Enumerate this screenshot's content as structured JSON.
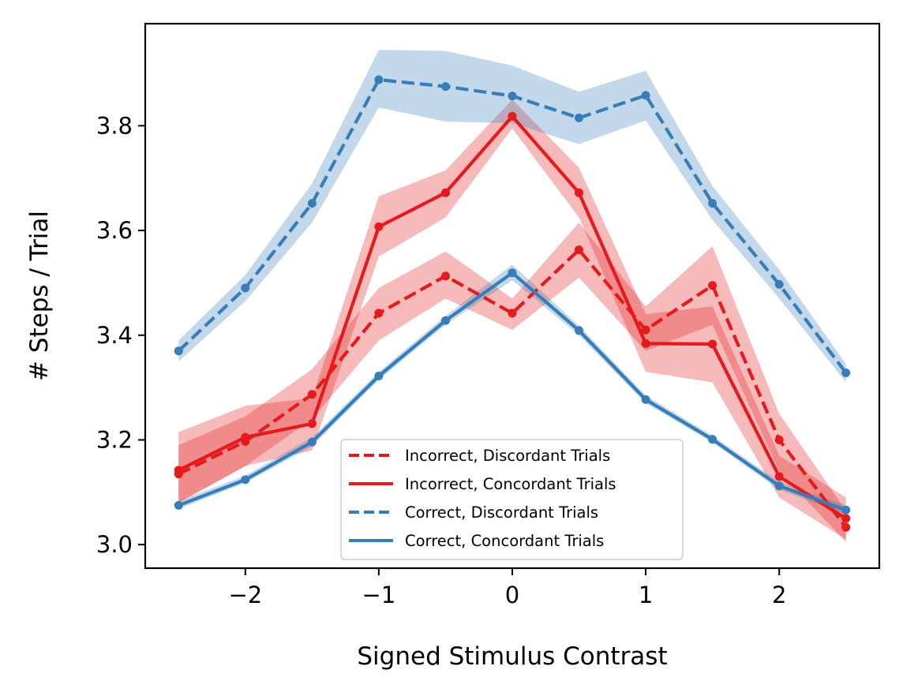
{
  "chart_data": {
    "type": "line",
    "title": "",
    "xlabel": "Signed Stimulus Contrast",
    "ylabel": "# Steps / Trial",
    "xlim": [
      -2.75,
      2.75
    ],
    "ylim": [
      2.955,
      3.995
    ],
    "xticks": [
      -2,
      -1,
      0,
      1,
      2
    ],
    "xtick_labels": [
      "−2",
      "−1",
      "0",
      "1",
      "2"
    ],
    "yticks": [
      3.0,
      3.2,
      3.4,
      3.6,
      3.8
    ],
    "ytick_labels": [
      "3.0",
      "3.2",
      "3.4",
      "3.6",
      "3.8"
    ],
    "grid": false,
    "legend_position": "lower-right",
    "x": [
      -2.5,
      -2.0,
      -1.5,
      -1.0,
      -0.5,
      0.0,
      0.5,
      1.0,
      1.5,
      2.0,
      2.5
    ],
    "series": [
      {
        "name": "Incorrect, Discordant Trials",
        "color": "#e41a1c",
        "line_style": "dashed",
        "values": [
          3.135,
          3.197,
          3.287,
          3.442,
          3.513,
          3.442,
          3.563,
          3.41,
          3.495,
          3.2,
          3.033
        ],
        "lower": [
          3.08,
          3.15,
          3.24,
          3.39,
          3.47,
          3.41,
          3.51,
          3.37,
          3.42,
          3.14,
          3.005
        ],
        "upper": [
          3.19,
          3.245,
          3.335,
          3.49,
          3.56,
          3.47,
          3.615,
          3.455,
          3.57,
          3.25,
          3.065
        ]
      },
      {
        "name": "Incorrect, Concordant Trials",
        "color": "#e41a1c",
        "line_style": "solid",
        "values": [
          3.142,
          3.205,
          3.231,
          3.607,
          3.672,
          3.818,
          3.672,
          3.384,
          3.383,
          3.13,
          3.05
        ],
        "lower": [
          3.08,
          3.15,
          3.18,
          3.55,
          3.625,
          3.795,
          3.625,
          3.33,
          3.31,
          3.09,
          3.01
        ],
        "upper": [
          3.215,
          3.265,
          3.28,
          3.665,
          3.715,
          3.85,
          3.72,
          3.44,
          3.455,
          3.17,
          3.09
        ]
      },
      {
        "name": "Correct, Discordant Trials",
        "color": "#377eb8",
        "line_style": "dashed",
        "values": [
          3.37,
          3.49,
          3.652,
          3.888,
          3.875,
          3.857,
          3.815,
          3.858,
          3.652,
          3.497,
          3.328
        ],
        "lower": [
          3.35,
          3.465,
          3.615,
          3.835,
          3.808,
          3.805,
          3.765,
          3.81,
          3.62,
          3.47,
          3.31
        ],
        "upper": [
          3.39,
          3.515,
          3.69,
          3.945,
          3.943,
          3.915,
          3.865,
          3.905,
          3.685,
          3.525,
          3.345
        ]
      },
      {
        "name": "Correct, Concordant Trials",
        "color": "#377eb8",
        "line_style": "solid",
        "values": [
          3.075,
          3.124,
          3.196,
          3.322,
          3.428,
          3.519,
          3.409,
          3.277,
          3.201,
          3.112,
          3.066
        ],
        "lower": [
          3.068,
          3.118,
          3.188,
          3.315,
          3.42,
          3.505,
          3.4,
          3.27,
          3.195,
          3.105,
          3.058
        ],
        "upper": [
          3.083,
          3.132,
          3.205,
          3.33,
          3.437,
          3.535,
          3.418,
          3.285,
          3.208,
          3.12,
          3.075
        ]
      }
    ]
  }
}
